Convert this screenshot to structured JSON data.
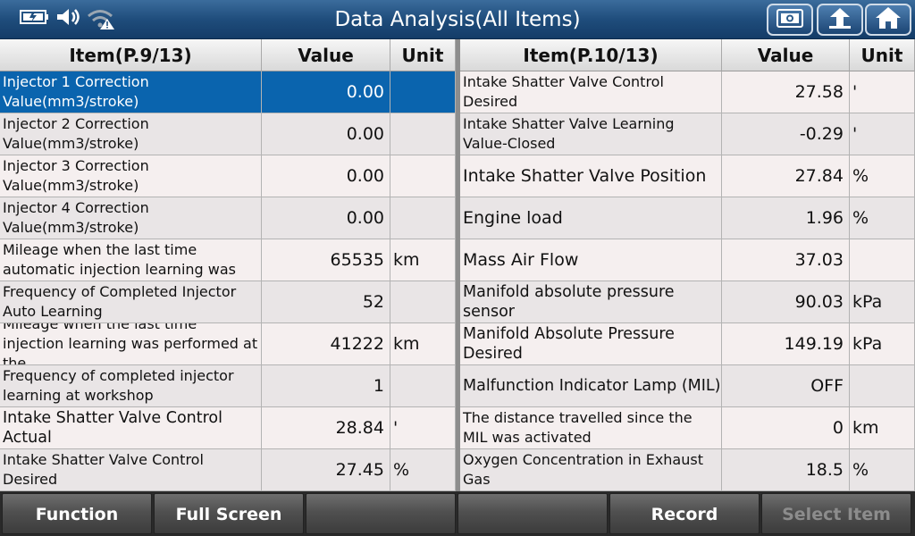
{
  "header": {
    "title": "Data Analysis(All Items)"
  },
  "status_icons": [
    "battery-icon",
    "speaker-icon",
    "wifi-warning-icon"
  ],
  "toolbar_icons": [
    "screenshot-icon",
    "back-icon",
    "home-icon"
  ],
  "left_table": {
    "headers": {
      "item": "Item(P.9/13)",
      "value": "Value",
      "unit": "Unit"
    },
    "rows": [
      {
        "name": "Injector 1 Correction Value(mm3/stroke)",
        "value": "0.00",
        "unit": ""
      },
      {
        "name": "Injector 2 Correction Value(mm3/stroke)",
        "value": "0.00",
        "unit": ""
      },
      {
        "name": "Injector 3 Correction Value(mm3/stroke)",
        "value": "0.00",
        "unit": ""
      },
      {
        "name": "Injector 4 Correction Value(mm3/stroke)",
        "value": "0.00",
        "unit": ""
      },
      {
        "name": "Mileage when the last time automatic injection learning was",
        "value": "65535",
        "unit": "km"
      },
      {
        "name": "Frequency of Completed Injector Auto Learning",
        "value": "52",
        "unit": ""
      },
      {
        "name": "Mileage when the last time injection learning was performed at the",
        "value": "41222",
        "unit": "km"
      },
      {
        "name": "Frequency of completed injector learning at workshop",
        "value": "1",
        "unit": ""
      },
      {
        "name": "Intake Shatter Valve Control Actual",
        "value": "28.84",
        "unit": "'"
      },
      {
        "name": "Intake Shatter Valve Control Desired",
        "value": "27.45",
        "unit": "%"
      }
    ]
  },
  "right_table": {
    "headers": {
      "item": "Item(P.10/13)",
      "value": "Value",
      "unit": "Unit"
    },
    "rows": [
      {
        "name": "Intake Shatter Valve Control Desired",
        "value": "27.58",
        "unit": "'"
      },
      {
        "name": "Intake Shatter Valve Learning Value-Closed",
        "value": "-0.29",
        "unit": "'"
      },
      {
        "name": "Intake Shatter Valve Position",
        "value": "27.84",
        "unit": "%"
      },
      {
        "name": "Engine load",
        "value": "1.96",
        "unit": "%"
      },
      {
        "name": "Mass Air Flow",
        "value": "37.03",
        "unit": ""
      },
      {
        "name": "Manifold absolute pressure sensor",
        "value": "90.03",
        "unit": "kPa"
      },
      {
        "name": "Manifold Absolute Pressure Desired",
        "value": "149.19",
        "unit": "kPa"
      },
      {
        "name": "Malfunction Indicator Lamp (MIL)",
        "value": "OFF",
        "unit": ""
      },
      {
        "name": "The distance travelled since the MIL was activated",
        "value": "0",
        "unit": "km"
      },
      {
        "name": "Oxygen Concentration in Exhaust Gas",
        "value": "18.5",
        "unit": "%"
      }
    ]
  },
  "bottom_buttons": [
    {
      "label": "Function",
      "enabled": true
    },
    {
      "label": "Full Screen",
      "enabled": true
    },
    {
      "label": "",
      "enabled": true
    },
    {
      "label": "",
      "enabled": true
    },
    {
      "label": "Record",
      "enabled": true
    },
    {
      "label": "Select Item",
      "enabled": false
    }
  ],
  "colors": {
    "selected_row": "#0a64ae",
    "title_bar": "#1f4d7c",
    "disabled_text": "#8c8c8c"
  }
}
